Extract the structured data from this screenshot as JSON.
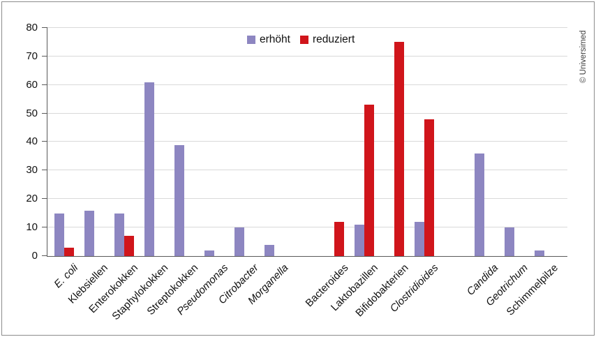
{
  "watermark": "© Universimed",
  "chart_data": {
    "type": "bar",
    "title": "",
    "xlabel": "",
    "ylabel": "",
    "ylim": [
      0,
      80
    ],
    "y_ticks": [
      0,
      10,
      20,
      30,
      40,
      50,
      60,
      70,
      80
    ],
    "grid": true,
    "legend_position": "top-center",
    "categories": [
      {
        "label": "E. coli",
        "italic": true
      },
      {
        "label": "Klebsiellen",
        "italic": false
      },
      {
        "label": "Enterokokken",
        "italic": false
      },
      {
        "label": "Staphylokokken",
        "italic": false
      },
      {
        "label": "Streptokokken",
        "italic": false
      },
      {
        "label": "Pseudomonas",
        "italic": true
      },
      {
        "label": "Citrobacter",
        "italic": true
      },
      {
        "label": "Morganella",
        "italic": true
      },
      {
        "label": "Bacteroides",
        "italic": false
      },
      {
        "label": "Laktobazillen",
        "italic": false
      },
      {
        "label": "Bifidobakterien",
        "italic": false
      },
      {
        "label": "Clostridioides",
        "italic": true
      },
      {
        "label": "Candida",
        "italic": true
      },
      {
        "label": "Geotrichum",
        "italic": true
      },
      {
        "label": "Schimmelpilze",
        "italic": false
      }
    ],
    "group_gap_after_indices": [
      7,
      11
    ],
    "series": [
      {
        "name": "erhöht",
        "color": "#8d86c1",
        "values": [
          15,
          16,
          15,
          61,
          39,
          2,
          10,
          4,
          null,
          11,
          null,
          12,
          36,
          10,
          2
        ]
      },
      {
        "name": "reduziert",
        "color": "#d0151b",
        "values": [
          3,
          null,
          7,
          null,
          null,
          null,
          null,
          null,
          12,
          53,
          75,
          48,
          null,
          null,
          null
        ]
      }
    ],
    "colors": {
      "grid": "#d9d9d9",
      "axis": "#595959",
      "text": "#111111"
    }
  }
}
